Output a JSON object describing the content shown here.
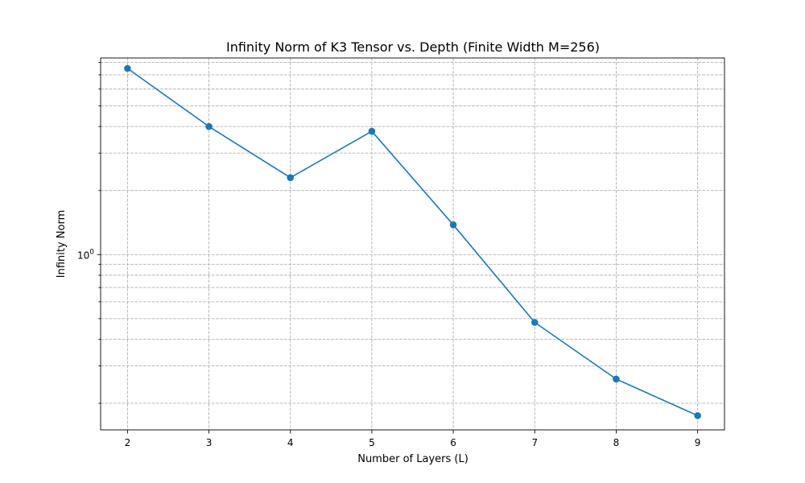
{
  "chart_data": {
    "type": "line",
    "title": "Infinity Norm of K3 Tensor vs. Depth (Finite Width M=256)",
    "xlabel": "Number of Layers (L)",
    "ylabel": "Infinity Norm",
    "x": [
      2,
      3,
      4,
      5,
      6,
      7,
      8,
      9
    ],
    "series": [
      {
        "values": [
          7.5,
          4.0,
          2.3,
          3.8,
          1.38,
          0.48,
          0.26,
          0.175
        ]
      }
    ],
    "xlim": [
      1.67,
      9.33
    ],
    "ylim": [
      0.15,
      8.4
    ],
    "yscale": "log",
    "xticks": [
      2,
      3,
      4,
      5,
      6,
      7,
      8,
      9
    ],
    "yticks_major": [
      {
        "base": "10",
        "exp": "0",
        "value": 1
      }
    ],
    "yticks_minor": [
      0.2,
      0.3,
      0.4,
      0.5,
      0.6,
      0.7,
      0.8,
      0.9,
      2,
      3,
      4,
      5,
      6,
      7,
      8
    ],
    "grid": true,
    "grid_style": "dashed",
    "colors": {
      "line": "#1f77b4",
      "marker": "#1f77b4",
      "grid": "#b0b0b0",
      "axes": "#000000"
    }
  }
}
